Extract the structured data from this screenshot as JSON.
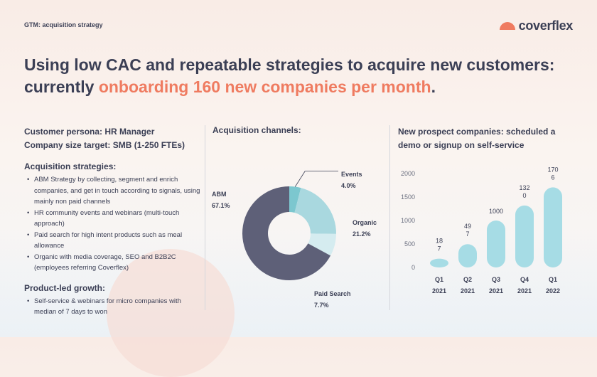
{
  "header": {
    "section_label": "GTM: acquisition strategy",
    "logo_text": "coverflex",
    "headline_line1": "Using low CAC and repeatable strategies to acquire new customers:",
    "headline_prefix": "currently ",
    "headline_accent": "onboarding 160 new companies per month",
    "headline_suffix": "."
  },
  "left": {
    "persona_line1": "Customer persona: HR Manager",
    "persona_line2": "Company size target: SMB (1-250 FTEs)",
    "strategies_title": "Acquisition strategies:",
    "strategies": [
      "ABM Strategy by collecting, segment and enrich companies, and get in touch according to signals, using mainly non paid channels",
      "HR community events and webinars (multi-touch approach)",
      "Paid search for high intent products such as meal allowance",
      "Organic with media coverage, SEO and B2B2C (employees referring Coverflex)"
    ],
    "plg_title": "Product-led growth:",
    "plg_items": [
      "Self-service & webinars for micro companies with median of 7 days to won"
    ]
  },
  "middle": {
    "title": "Acquisition channels:"
  },
  "right": {
    "title": "New prospect companies: scheduled a demo or signup on self-service"
  },
  "colors": {
    "accent": "#ef7b60",
    "text": "#3b3f55",
    "abm": "#5e6078",
    "events": "#7cc7cf",
    "organic": "#a9d8df",
    "paid": "#d5ecf0",
    "bar": "#a6dce5"
  },
  "chart_data": [
    {
      "type": "pie",
      "variant": "donut",
      "title": "Acquisition channels:",
      "slices": [
        {
          "label": "Events",
          "value": 4.0,
          "display": "4.0%",
          "color": "#7cc7cf"
        },
        {
          "label": "Organic",
          "value": 21.2,
          "display": "21.2%",
          "color": "#a9d8df"
        },
        {
          "label": "Paid Search",
          "value": 7.7,
          "display": "7.7%",
          "color": "#d5ecf0"
        },
        {
          "label": "ABM",
          "value": 67.1,
          "display": "67.1%",
          "color": "#5e6078"
        }
      ]
    },
    {
      "type": "bar",
      "title": "New prospect companies: scheduled a demo or signup on self-service",
      "categories": [
        {
          "line1": "Q1",
          "line2": "2021"
        },
        {
          "line1": "Q2",
          "line2": "2021"
        },
        {
          "line1": "Q3",
          "line2": "2021"
        },
        {
          "line1": "Q4",
          "line2": "2021"
        },
        {
          "line1": "Q1",
          "line2": "2022"
        }
      ],
      "values": [
        187,
        497,
        1000,
        1320,
        1706
      ],
      "value_labels": [
        {
          "line1": "18",
          "line2": "7"
        },
        {
          "line1": "49",
          "line2": "7"
        },
        {
          "line1": "1000",
          "line2": ""
        },
        {
          "line1": "132",
          "line2": "0"
        },
        {
          "line1": "170",
          "line2": "6"
        }
      ],
      "yticks": [
        0,
        500,
        1000,
        1500,
        2000
      ],
      "ylim": [
        0,
        2000
      ],
      "grid": false
    }
  ]
}
